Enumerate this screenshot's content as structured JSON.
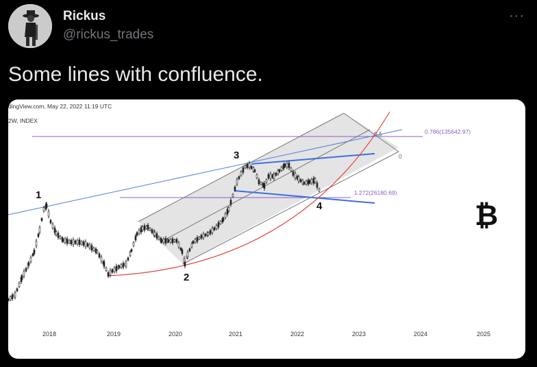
{
  "user": {
    "display_name": "Rickus",
    "handle": "@rickus_trades",
    "avatar_icon": "avatar-photo-icon"
  },
  "menu": {
    "more_label": "···"
  },
  "tweet": {
    "text": "Some lines with confluence."
  },
  "chart_meta": {
    "source_label": "dingView.com, May 22, 2022 11:19 UTC",
    "interval_label": "2W, INDEX",
    "bitcoin_symbol": "₿"
  },
  "chart_data": {
    "type": "line",
    "x_ticks": [
      "2018",
      "2019",
      "2020",
      "2021",
      "2022",
      "2023",
      "2024",
      "2025"
    ],
    "wave_labels": [
      "1",
      "2",
      "3",
      "4"
    ],
    "fib_labels": {
      "f0786": "0.786(135642.97)",
      "f1272": "1.272(26180.69)",
      "half": "0.5",
      "zero": "0"
    },
    "colors": {
      "candles": "#222222",
      "trendline": "#4a7fe0",
      "fib_line": "#8e5cc9",
      "curve": "#e0403a",
      "channel_fill": "#e4e4e4",
      "channel_edge": "#666666"
    }
  }
}
